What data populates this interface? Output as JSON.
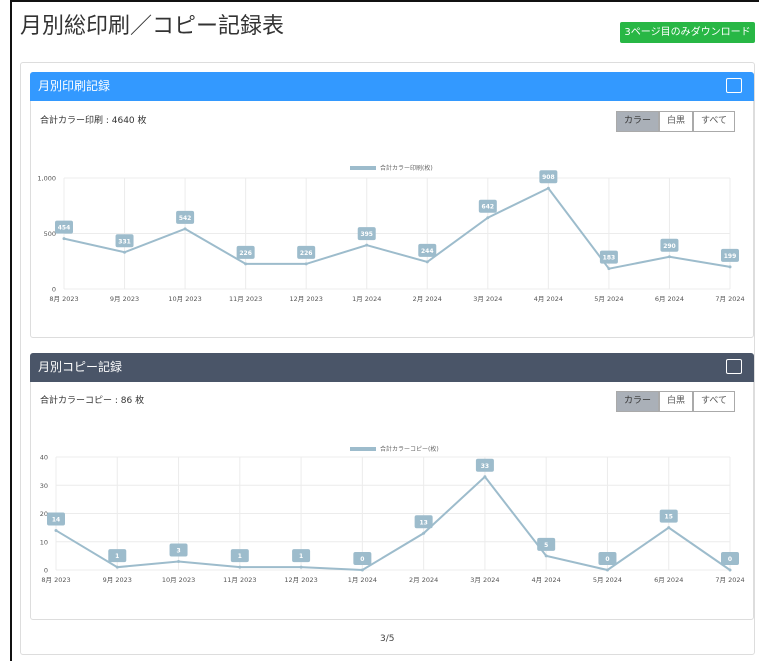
{
  "title": "月別総印刷／コピー記録表",
  "download_button": "3ページ目のみダウンロード",
  "pagination": "3/5",
  "chart_data": [
    {
      "type": "line",
      "panel_title": "月別印刷記録",
      "summary": "合計カラー印刷 : 4640 枚",
      "filters": [
        "カラー",
        "白黒",
        "すべて"
      ],
      "categories": [
        "8月 2023",
        "9月 2023",
        "10月 2023",
        "11月 2023",
        "12月 2023",
        "1月 2024",
        "2月 2024",
        "3月 2024",
        "4月 2024",
        "5月 2024",
        "6月 2024",
        "7月 2024"
      ],
      "series": [
        {
          "name": "合計カラー印刷(枚)",
          "color": "#9dbccc",
          "values": [
            454,
            331,
            542,
            226,
            226,
            395,
            244,
            642,
            908,
            183,
            290,
            199
          ]
        }
      ],
      "ylim": [
        0,
        1000
      ],
      "yticks": [
        0,
        500,
        {
          "value": 1000,
          "label": "1,000"
        }
      ],
      "grid": true,
      "legend": "top",
      "data_labels": true
    },
    {
      "type": "line",
      "panel_title": "月別コピー記録",
      "summary": "合計カラーコピー : 86 枚",
      "filters": [
        "カラー",
        "白黒",
        "すべて"
      ],
      "categories": [
        "8月 2023",
        "9月 2023",
        "10月 2023",
        "11月 2023",
        "12月 2023",
        "1月 2024",
        "2月 2024",
        "3月 2024",
        "4月 2024",
        "5月 2024",
        "6月 2024",
        "7月 2024"
      ],
      "series": [
        {
          "name": "合計カラーコピー(枚)",
          "color": "#9dbccc",
          "values": [
            14,
            1,
            3,
            1,
            1,
            0,
            13,
            33,
            5,
            0,
            15,
            0
          ]
        }
      ],
      "ylim": [
        0,
        40
      ],
      "yticks": [
        0,
        10,
        20,
        30,
        40
      ],
      "grid": true,
      "legend": "top",
      "data_labels": true
    }
  ]
}
